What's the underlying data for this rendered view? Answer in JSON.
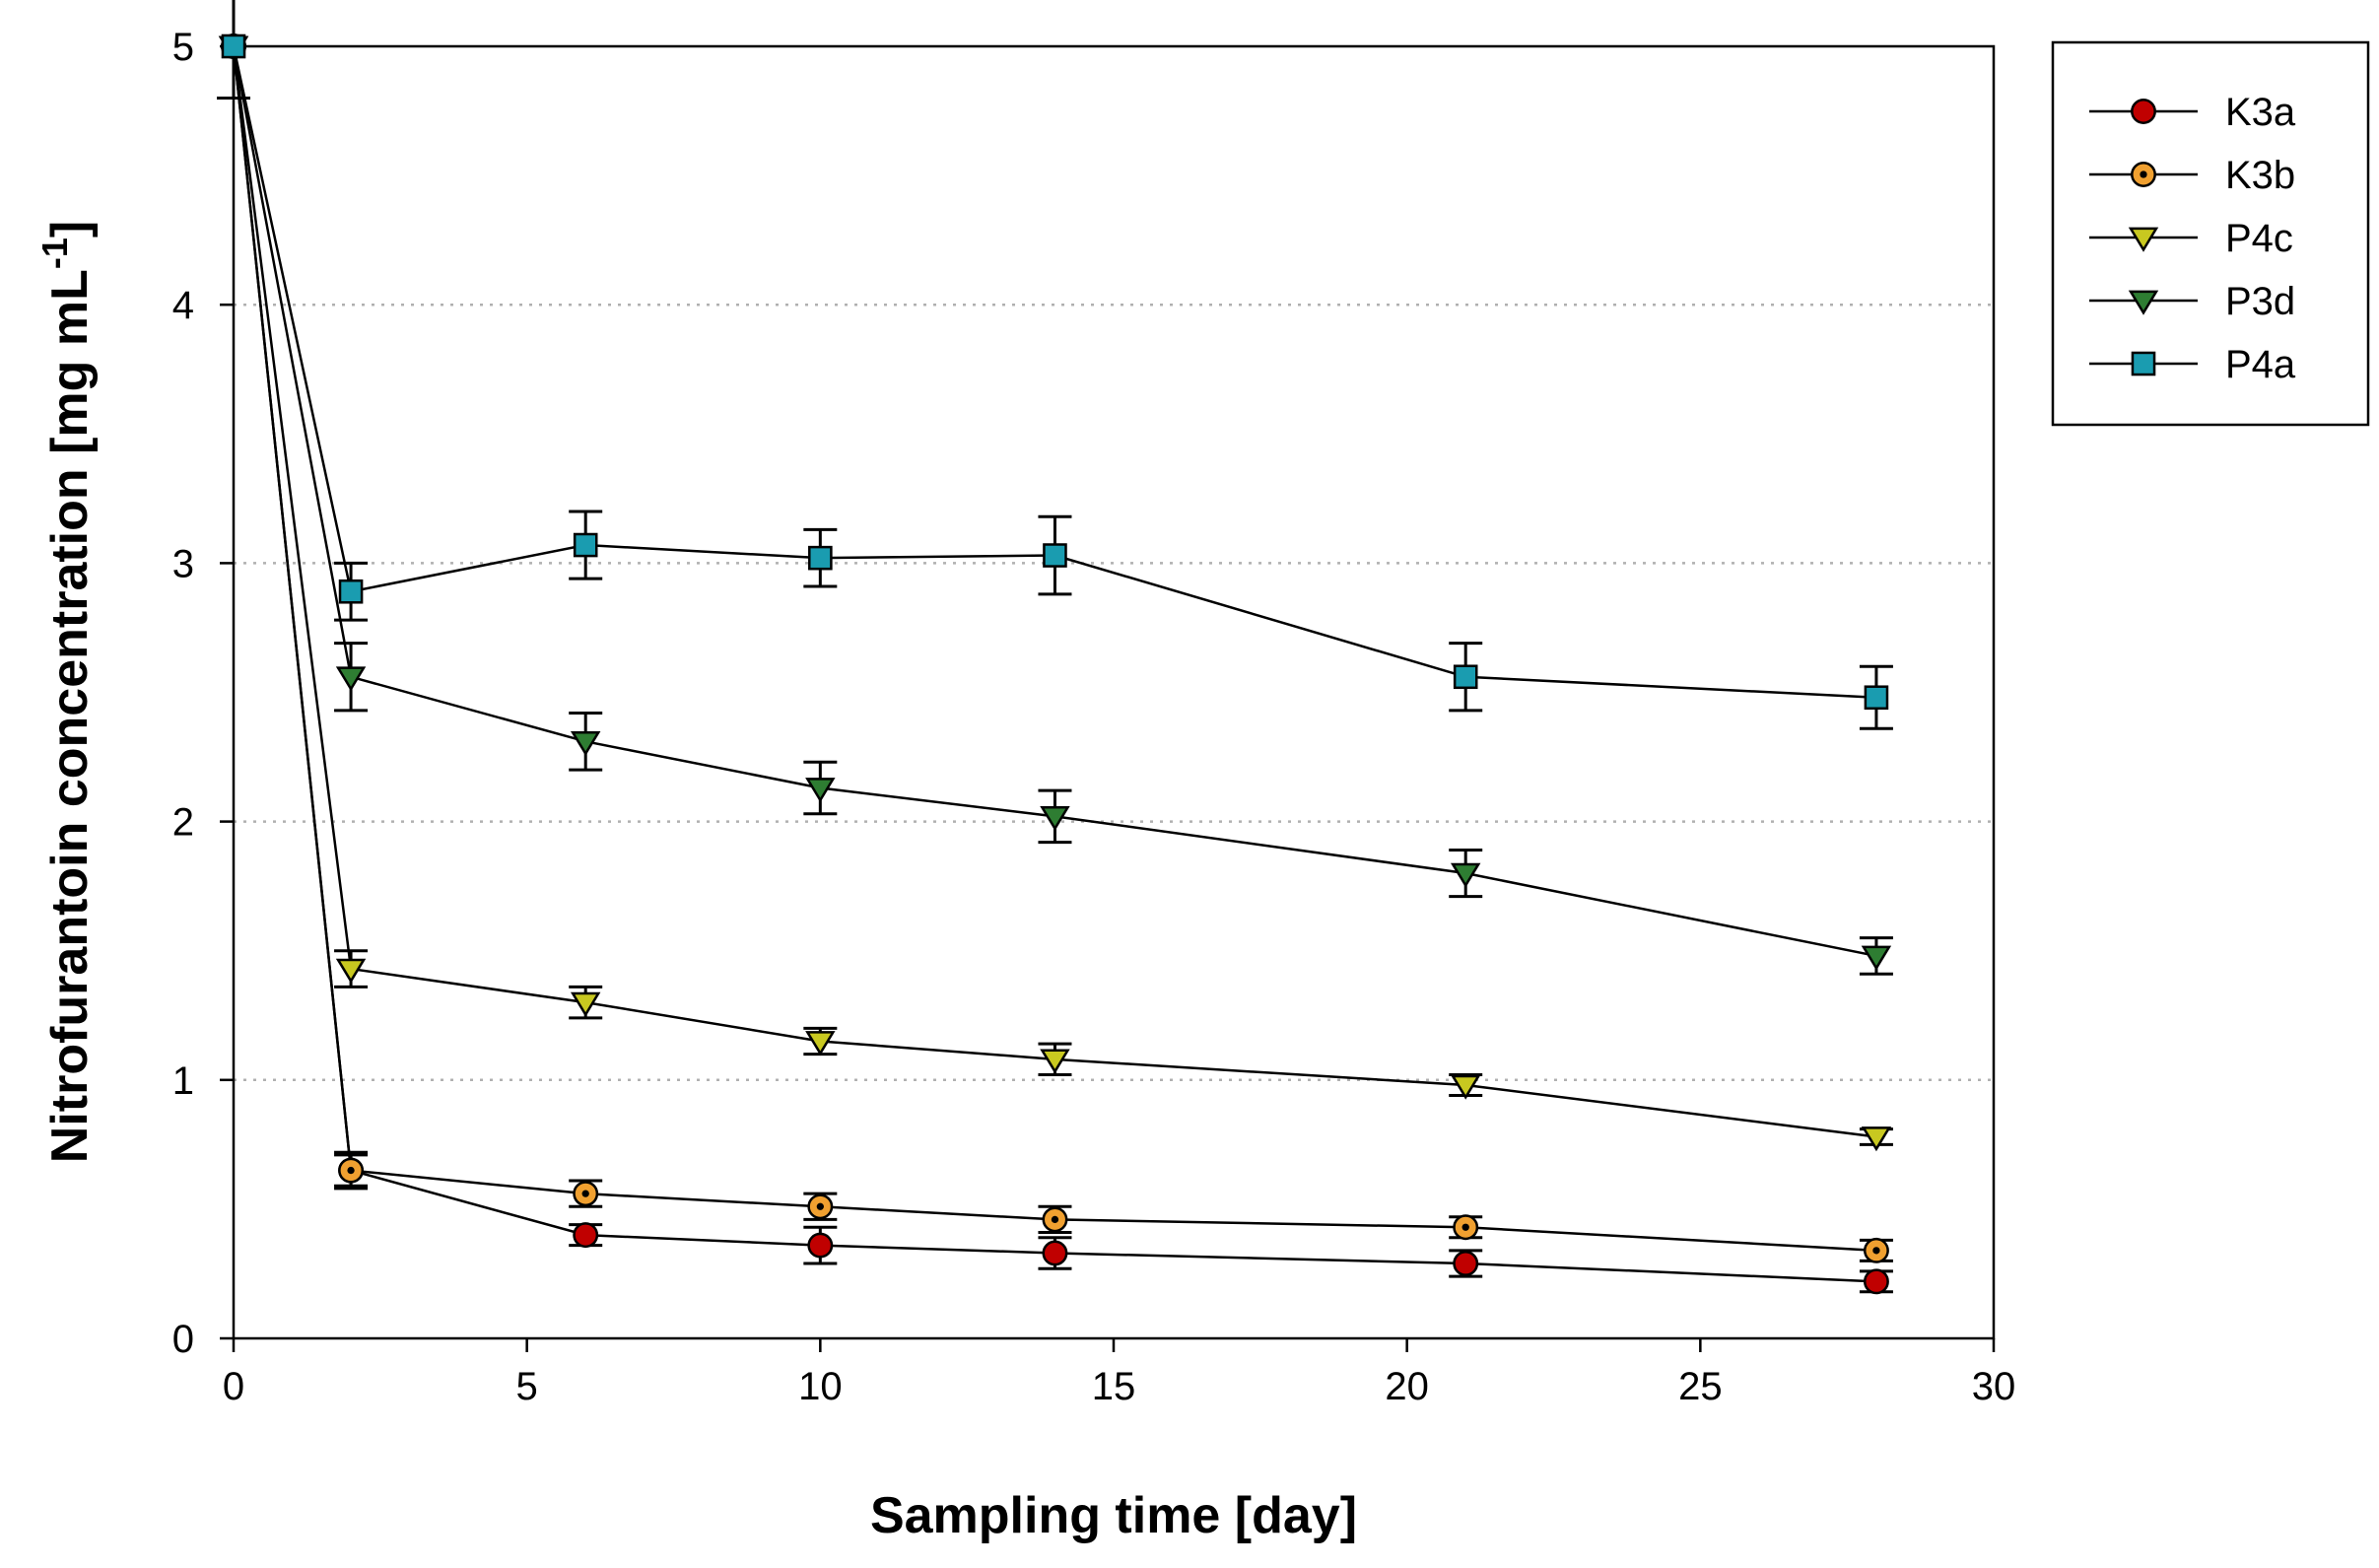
{
  "chart_data": {
    "type": "line",
    "xlabel": "Sampling time [day]",
    "ylabel_main": "Nitrofurantoin concentration [mg mL",
    "ylabel_sup": "-1",
    "ylabel_end": "]",
    "xlim": [
      0,
      30
    ],
    "ylim": [
      0,
      5
    ],
    "xticks": [
      0,
      5,
      10,
      15,
      20,
      25,
      30
    ],
    "yticks": [
      0,
      1,
      2,
      3,
      4,
      5
    ],
    "grid": "horizontal dotted at y = 1, 2, 3, 4",
    "legend_position": "right",
    "x": [
      0,
      2,
      6,
      10,
      14,
      21,
      28
    ],
    "series": [
      {
        "name": "K3a",
        "marker": "circle",
        "color": "#c00000",
        "values": [
          5.0,
          0.65,
          0.4,
          0.36,
          0.33,
          0.29,
          0.22
        ],
        "errors": [
          0.2,
          0.06,
          0.04,
          0.07,
          0.06,
          0.05,
          0.04
        ]
      },
      {
        "name": "K3b",
        "marker": "circle-dot",
        "color": "#f0a030",
        "values": [
          5.0,
          0.65,
          0.56,
          0.51,
          0.46,
          0.43,
          0.34
        ],
        "errors": [
          0.2,
          0.07,
          0.05,
          0.05,
          0.05,
          0.04,
          0.04
        ]
      },
      {
        "name": "P4c",
        "marker": "triangle-down",
        "color": "#c8c820",
        "values": [
          5.0,
          1.43,
          1.3,
          1.15,
          1.08,
          0.98,
          0.78
        ],
        "errors": [
          0.2,
          0.07,
          0.06,
          0.05,
          0.06,
          0.04,
          0.03
        ]
      },
      {
        "name": "P3d",
        "marker": "triangle-down",
        "color": "#2e7d32",
        "values": [
          5.0,
          2.56,
          2.31,
          2.13,
          2.02,
          1.8,
          1.48
        ],
        "errors": [
          0.2,
          0.13,
          0.11,
          0.1,
          0.1,
          0.09,
          0.07
        ]
      },
      {
        "name": "P4a",
        "marker": "square",
        "color": "#1a9cb0",
        "values": [
          5.0,
          2.89,
          3.07,
          3.02,
          3.03,
          2.56,
          2.48
        ],
        "errors": [
          0.2,
          0.11,
          0.13,
          0.11,
          0.15,
          0.13,
          0.12
        ]
      }
    ]
  }
}
